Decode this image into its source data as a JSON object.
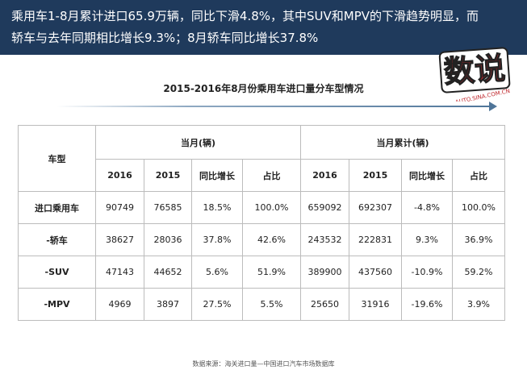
{
  "header": {
    "lines": [
      "乘用车1-8月累计进口65.9万辆，同比下滑4.8%，其中SUV和MPV的下滑趋势明显，而",
      "轿车与去年同期相比增长9.3%；8月轿车同比增长37.8%"
    ]
  },
  "logo": {
    "text": "数说",
    "sub": "AUTO.SINA.COM.CN"
  },
  "title": "2015-2016年8月份乘用车进口量分车型情况",
  "table": {
    "corner": "车型",
    "groups": [
      "当月(辆)",
      "当月累计(辆)"
    ],
    "subheaders": [
      "2016",
      "2015",
      "同比增长",
      "占比",
      "2016",
      "2015",
      "同比增长",
      "占比"
    ],
    "rows": [
      [
        "进口乘用车",
        "90749",
        "76585",
        "18.5%",
        "100.0%",
        "659092",
        "692307",
        "-4.8%",
        "100.0%"
      ],
      [
        "-轿车",
        "38627",
        "28036",
        "37.8%",
        "42.6%",
        "243532",
        "222831",
        "9.3%",
        "36.9%"
      ],
      [
        "-SUV",
        "47143",
        "44652",
        "5.6%",
        "51.9%",
        "389900",
        "437560",
        "-10.9%",
        "59.2%"
      ],
      [
        "-MPV",
        "4969",
        "3897",
        "27.5%",
        "5.5%",
        "25650",
        "31916",
        "-19.6%",
        "3.9%"
      ]
    ]
  },
  "source": "数据来源：海关进口量—中国进口汽车市场数据库"
}
